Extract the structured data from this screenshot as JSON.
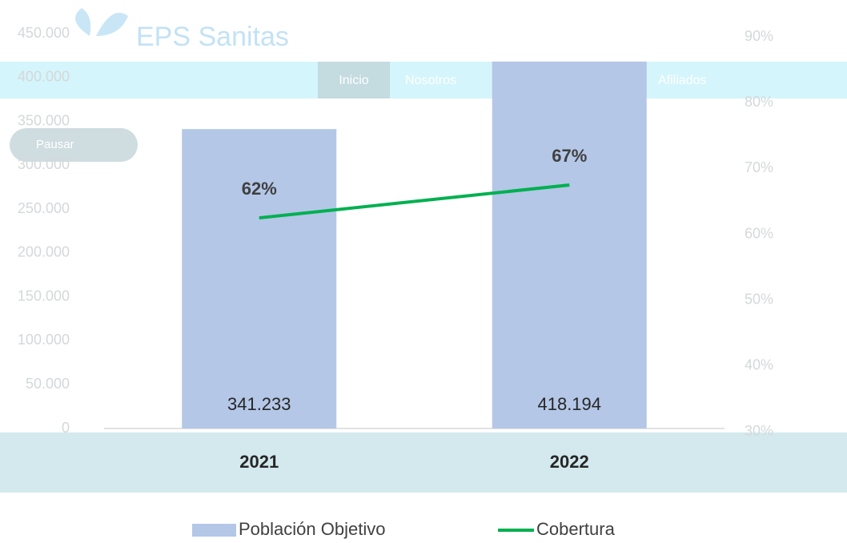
{
  "background": {
    "logo": "EPS Sanitas",
    "nav": [
      "Inicio",
      "Nosotros",
      "Afiliados"
    ],
    "button": "Pausar"
  },
  "chart_data": {
    "type": "bar-line",
    "categories": [
      "2021",
      "2022"
    ],
    "series": [
      {
        "name": "Población Objetivo",
        "type": "bar",
        "color": "#b4c7e7",
        "values": [
          341233,
          418194
        ],
        "value_labels": [
          "341.233",
          "418.194"
        ]
      },
      {
        "name": "Cobertura",
        "type": "line",
        "axis": "y2",
        "color": "#00b050",
        "values": [
          62,
          67
        ],
        "value_labels": [
          "62%",
          "67%"
        ]
      }
    ],
    "ylim": [
      0,
      450000
    ],
    "yticks": [
      {
        "value": 0,
        "label": "0"
      },
      {
        "value": 50000,
        "label": "50.000"
      },
      {
        "value": 100000,
        "label": "100.000"
      },
      {
        "value": 150000,
        "label": "150.000"
      },
      {
        "value": 200000,
        "label": "200.000"
      },
      {
        "value": 250000,
        "label": "250.000"
      },
      {
        "value": 300000,
        "label": "300.000"
      },
      {
        "value": 350000,
        "label": "350.000"
      },
      {
        "value": 400000,
        "label": "400.000"
      },
      {
        "value": 450000,
        "label": "450.000"
      }
    ],
    "y2lim": [
      30,
      90
    ],
    "y2ticks": [
      {
        "value": 30,
        "label": "30%"
      },
      {
        "value": 40,
        "label": "40%"
      },
      {
        "value": 50,
        "label": "50%"
      },
      {
        "value": 60,
        "label": "60%"
      },
      {
        "value": 70,
        "label": "70%"
      },
      {
        "value": 80,
        "label": "80%"
      },
      {
        "value": 90,
        "label": "90%"
      }
    ],
    "legend": "bottom"
  }
}
